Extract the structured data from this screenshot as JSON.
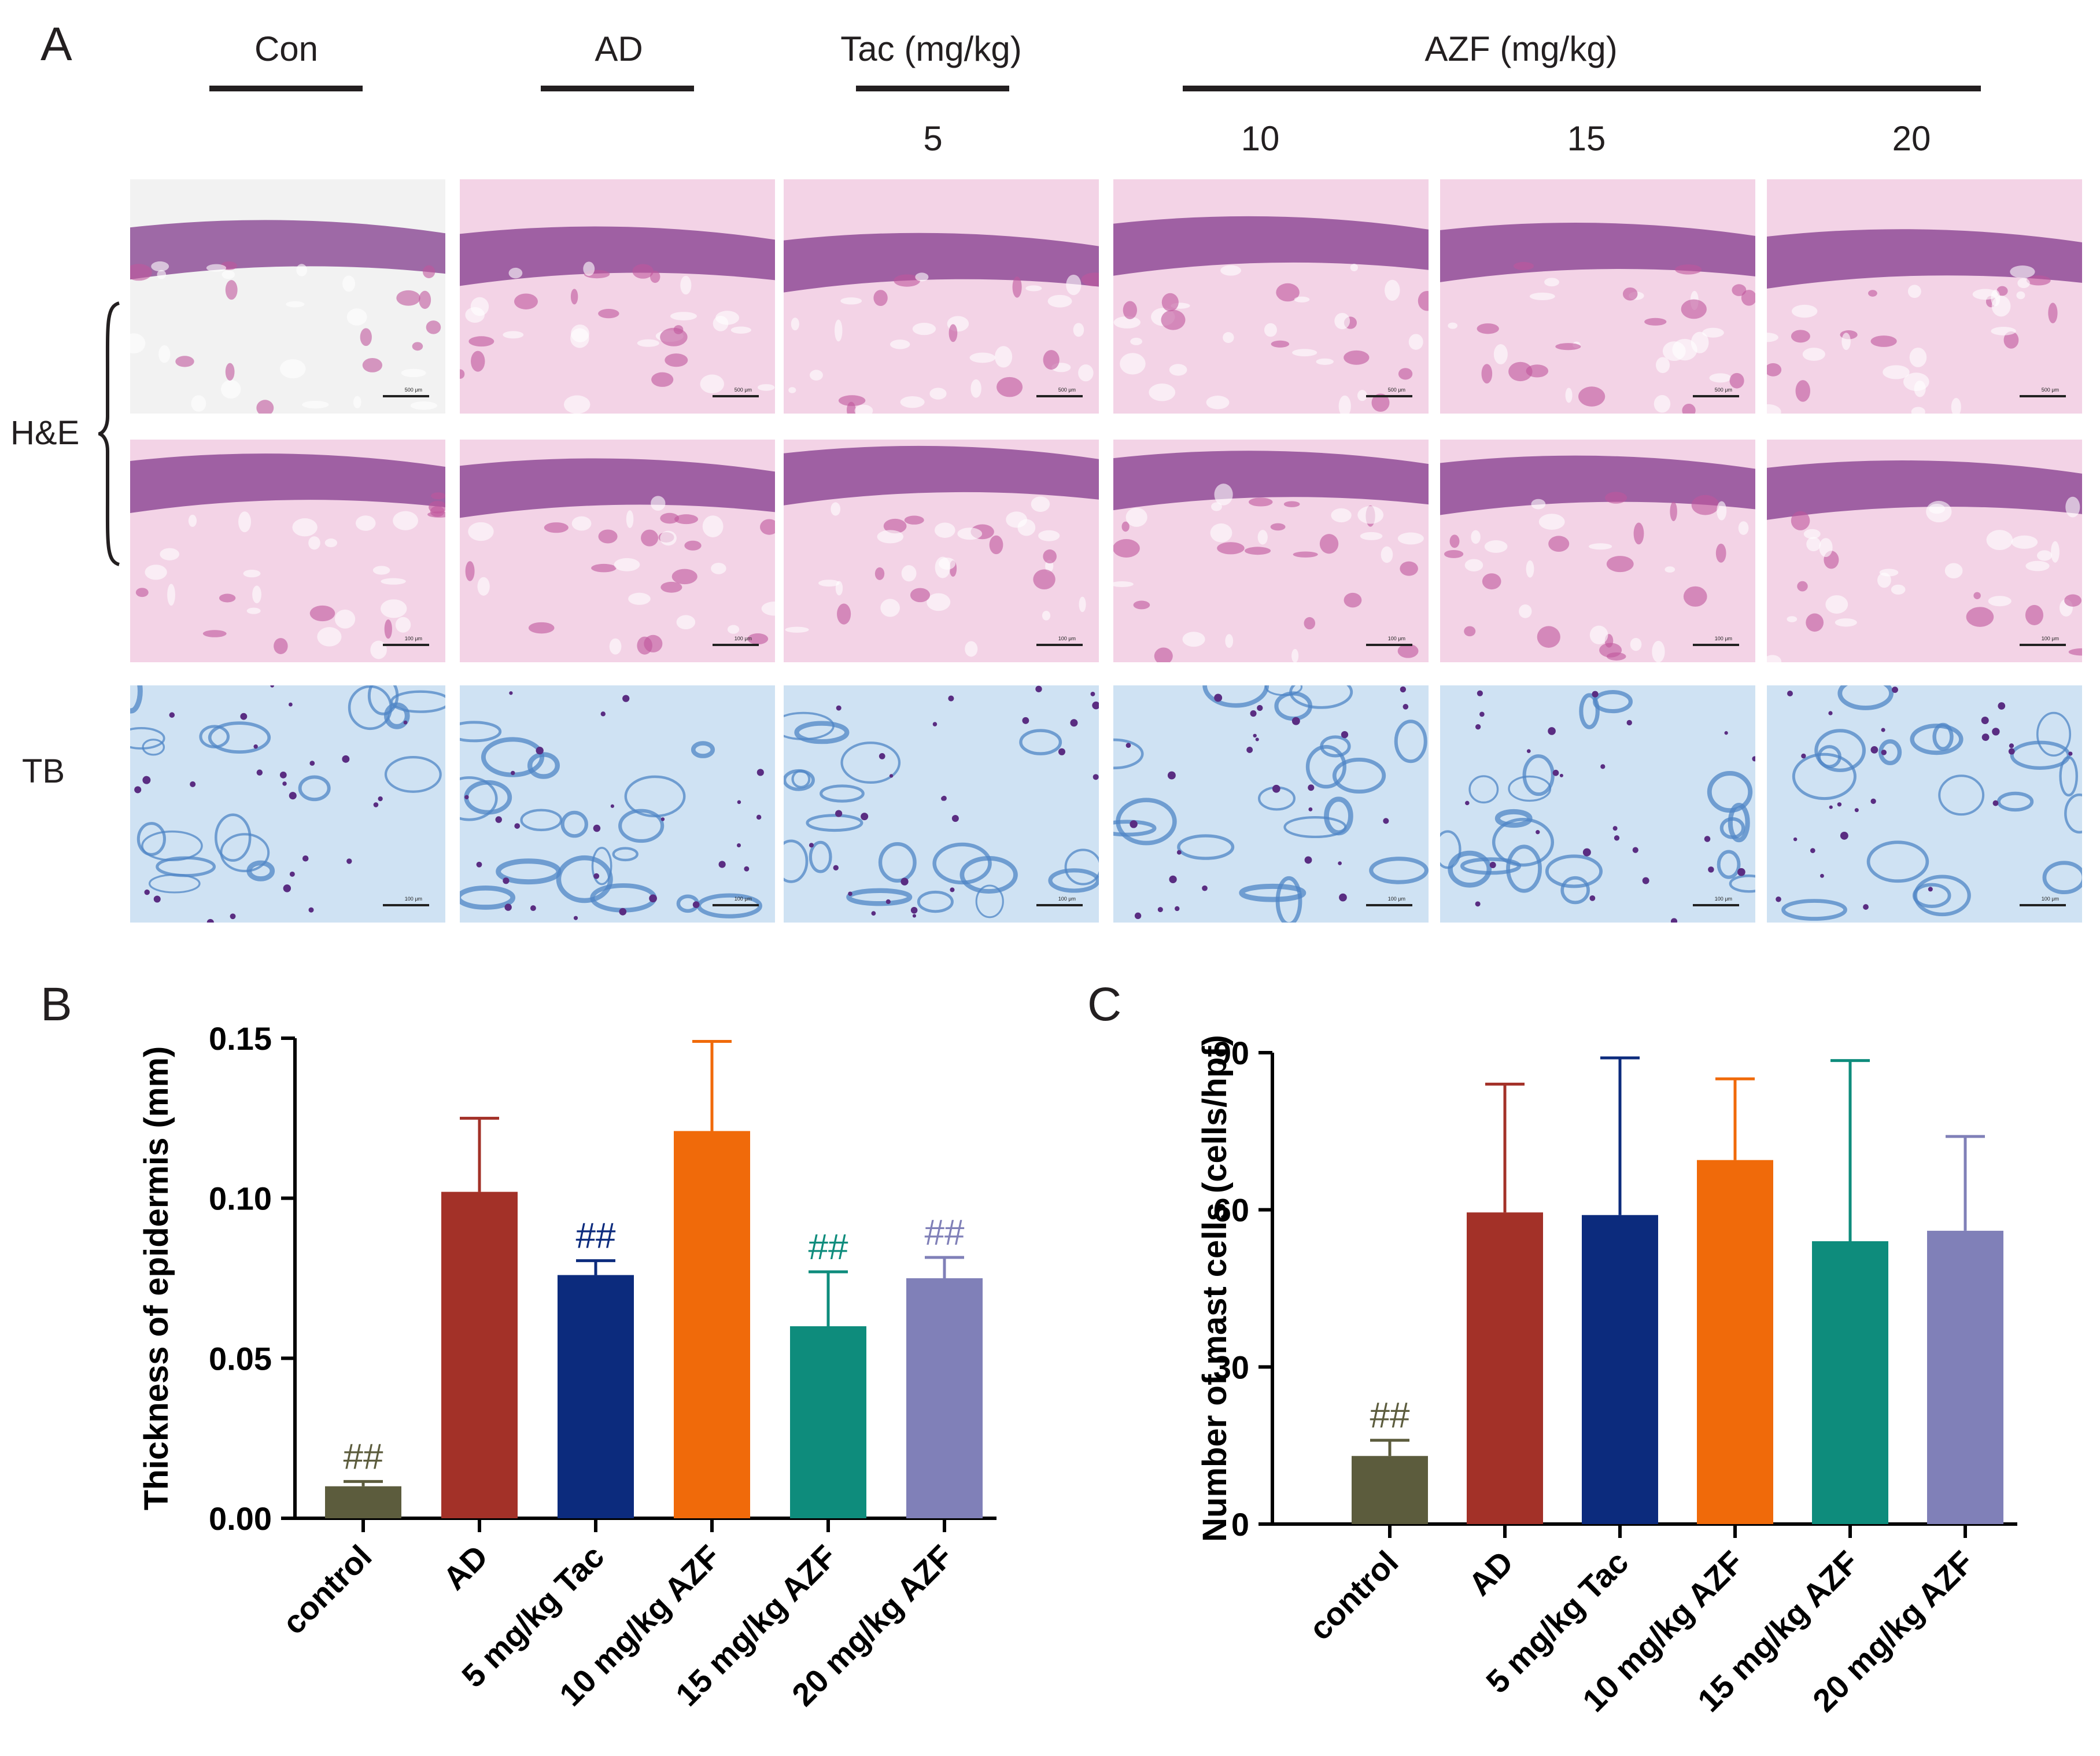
{
  "panel_labels": {
    "a": "A",
    "b": "B",
    "c": "C"
  },
  "panel_a": {
    "groups": {
      "con": "Con",
      "ad": "AD",
      "tac": "Tac (mg/kg)",
      "azf": "AZF (mg/kg)"
    },
    "doses": [
      "5",
      "10",
      "15",
      "20"
    ],
    "rows": {
      "he": "H&E",
      "tb": "TB"
    },
    "scale_labels": {
      "he_top": "500 μm",
      "he_mid": "100 μm",
      "tb": "100 μm"
    },
    "colors": {
      "he_background": "#f3d3e6",
      "he_stain": "#c0569c",
      "he_dark": "#7a2f86",
      "tb_background": "#cfe2f3",
      "tb_stain": "#4f86c6",
      "tb_cell": "#5a2d82"
    }
  },
  "chart_data": [
    {
      "panel": "B",
      "type": "bar",
      "categories": [
        "control",
        "AD",
        "5 mg/kg Tac",
        "10 mg/kg AZF",
        "15 mg/kg AZF",
        "20 mg/kg AZF"
      ],
      "values": [
        0.01,
        0.102,
        0.076,
        0.121,
        0.06,
        0.075
      ],
      "errors": [
        0.0015,
        0.023,
        0.0045,
        0.028,
        0.017,
        0.0065
      ],
      "annotations": [
        "##",
        "",
        "##",
        "",
        "##",
        "##"
      ],
      "colors": [
        "#5c5c3d",
        "#a33128",
        "#0c2b7d",
        "#f06a0a",
        "#0e8c7c",
        "#8080b8"
      ],
      "annotation_colors": [
        "#5c5c3d",
        "#a33128",
        "#0c2b7d",
        "#f06a0a",
        "#0e8c7c",
        "#8080b8"
      ],
      "ylabel": "Thickness of epidermis (mm)",
      "yticks": [
        "0.00",
        "0.05",
        "0.10",
        "0.15"
      ],
      "ylim": [
        0,
        0.15
      ]
    },
    {
      "panel": "C",
      "type": "bar",
      "categories": [
        "control",
        "AD",
        "5 mg/kg Tac",
        "10 mg/kg AZF",
        "15 mg/kg AZF",
        "20 mg/kg AZF"
      ],
      "values": [
        13,
        59.5,
        59,
        69.5,
        54,
        56
      ],
      "errors": [
        3,
        24.5,
        30,
        15.5,
        34.5,
        18
      ],
      "annotations": [
        "##",
        "",
        "",
        "",
        "",
        ""
      ],
      "colors": [
        "#5c5c3d",
        "#a33128",
        "#0c2b7d",
        "#f06a0a",
        "#0e8c7c",
        "#8080b8"
      ],
      "annotation_colors": [
        "#5c5c3d",
        "#a33128",
        "#0c2b7d",
        "#f06a0a",
        "#0e8c7c",
        "#8080b8"
      ],
      "ylabel": "Number of mast cells (cells/hpf)",
      "yticks": [
        "0",
        "30",
        "60",
        "90"
      ],
      "ylim": [
        0,
        90
      ]
    }
  ]
}
